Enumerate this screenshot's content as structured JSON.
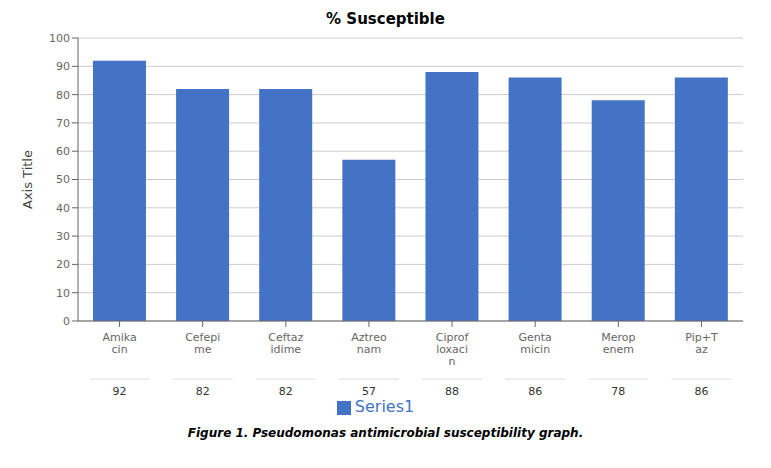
{
  "chart_data": {
    "type": "bar",
    "title": "% Susceptible",
    "ylabel": "Axis Title",
    "caption": "Figure 1. Pseudomonas antimicrobial susceptibility graph.",
    "categories": [
      "Amika\ncin",
      "Cefepi\nme",
      "Ceftaz\nidime",
      "Aztreo\nnam",
      "Ciprof\nloxaci\nn",
      "Genta\nmicin",
      "Merop\nenem",
      "Pip+T\naz"
    ],
    "series": [
      {
        "name": "Series1",
        "color": "#4472C4",
        "values": [
          92,
          82,
          82,
          57,
          88,
          86,
          78,
          86
        ]
      }
    ],
    "ylim": [
      0,
      100
    ],
    "yticks": [
      0,
      10,
      20,
      30,
      40,
      50,
      60,
      70,
      80,
      90,
      100
    ],
    "grid": true,
    "legend": "bottom"
  }
}
